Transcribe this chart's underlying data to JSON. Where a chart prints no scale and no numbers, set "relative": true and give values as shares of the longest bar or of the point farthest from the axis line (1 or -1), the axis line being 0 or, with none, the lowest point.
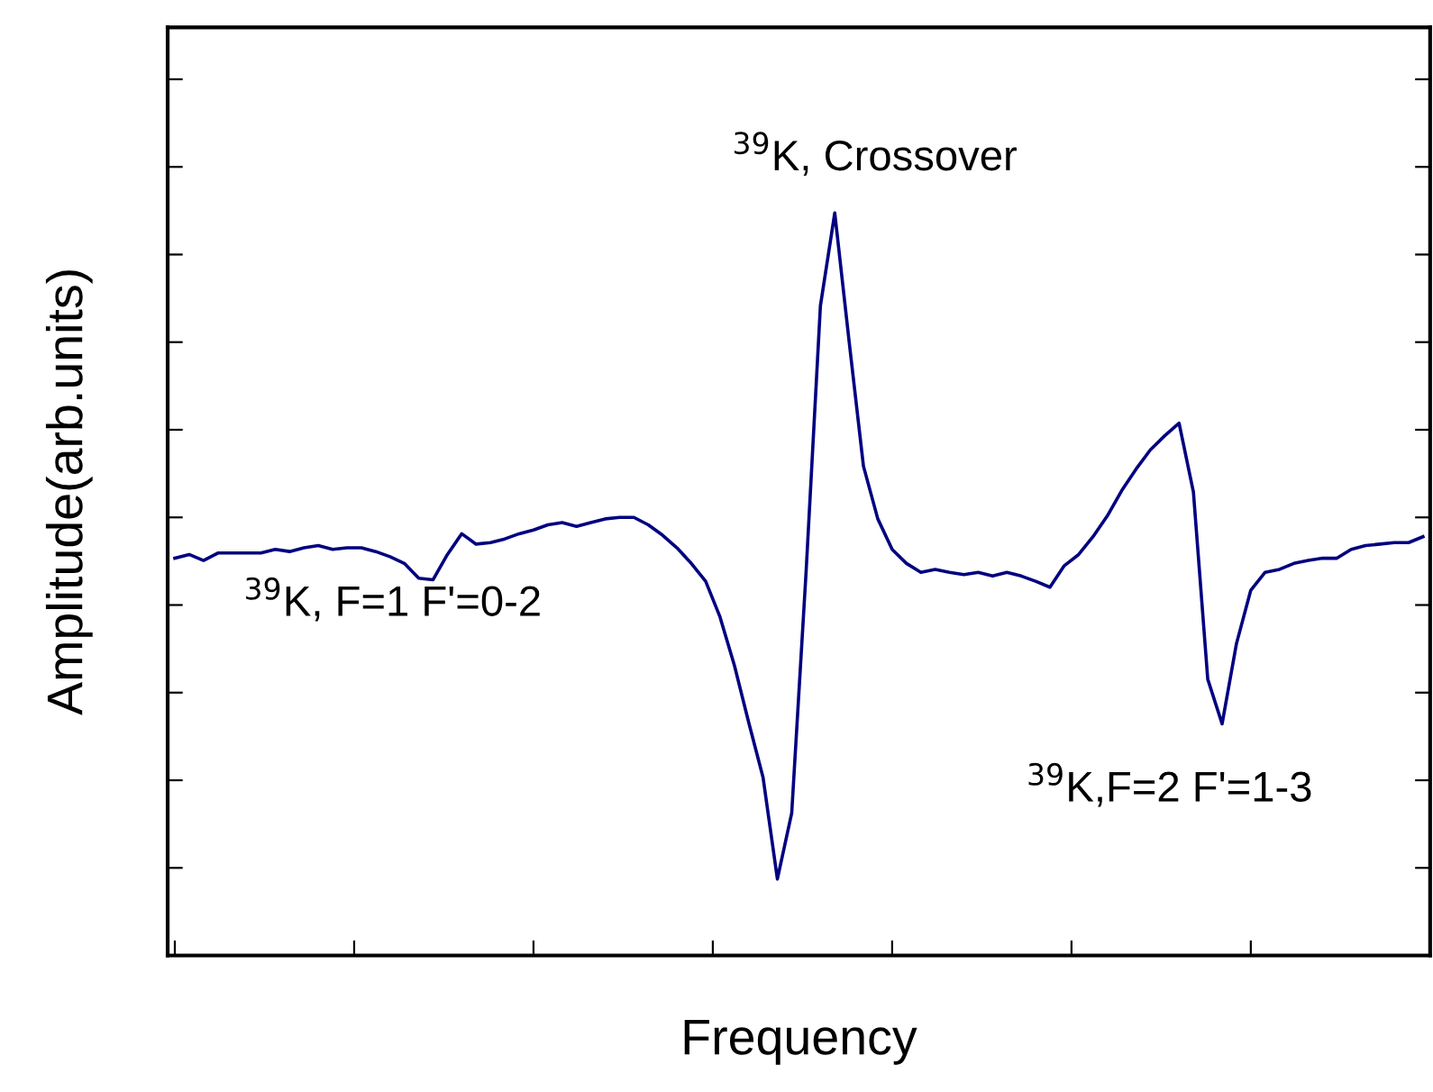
{
  "chart_data": {
    "type": "line",
    "relative": true,
    "xlabel": "Frequency",
    "ylabel": "Amplitude(arb.units)",
    "tick_labels": false,
    "grid": false,
    "legend": false,
    "marker": "none",
    "line_style": "solid",
    "categories": [
      null,
      null,
      null,
      null,
      null,
      null,
      null,
      null,
      null,
      null,
      null,
      null,
      null,
      null,
      null,
      null,
      null,
      null,
      null,
      null,
      null,
      null,
      null,
      null,
      null,
      null,
      null,
      null,
      null,
      null,
      null,
      null,
      null,
      null,
      null,
      null,
      null,
      null,
      null,
      null,
      null,
      null,
      null,
      null,
      null,
      null,
      null,
      null,
      null,
      null,
      null,
      null,
      null,
      null,
      null,
      null,
      null,
      null,
      null,
      null,
      null,
      null,
      null,
      null,
      null,
      null,
      null,
      null,
      null,
      null,
      null,
      null,
      null,
      null,
      null,
      null,
      null,
      null,
      null,
      null,
      null,
      null,
      null,
      null,
      null,
      null,
      null,
      null
    ],
    "series": [
      {
        "color": "#000080",
        "values": [
          0.535,
          0.54,
          0.532,
          0.542,
          0.542,
          0.542,
          0.542,
          0.547,
          0.544,
          0.549,
          0.552,
          0.547,
          0.549,
          0.549,
          0.544,
          0.537,
          0.528,
          0.508,
          0.506,
          0.54,
          0.568,
          0.554,
          0.556,
          0.561,
          0.568,
          0.573,
          0.58,
          0.583,
          0.578,
          0.583,
          0.588,
          0.59,
          0.59,
          0.58,
          0.566,
          0.549,
          0.528,
          0.504,
          0.456,
          0.391,
          0.314,
          0.24,
          0.103,
          0.192,
          0.516,
          0.875,
          1.0,
          0.827,
          0.659,
          0.588,
          0.547,
          0.528,
          0.516,
          0.52,
          0.516,
          0.513,
          0.516,
          0.511,
          0.516,
          0.511,
          0.504,
          0.496,
          0.525,
          0.54,
          0.564,
          0.592,
          0.626,
          0.655,
          0.681,
          0.7,
          0.717,
          0.624,
          0.372,
          0.312,
          0.42,
          0.492,
          0.516,
          0.52,
          0.528,
          0.532,
          0.535,
          0.535,
          0.547,
          0.552,
          0.554,
          0.556,
          0.556,
          0.564
        ]
      }
    ],
    "annotations": [
      "$^{39}$K, Crossover",
      "$^{39}$K, F=1 F'=0-2",
      "$^{39}$K,F=2 F'=1-3"
    ]
  }
}
